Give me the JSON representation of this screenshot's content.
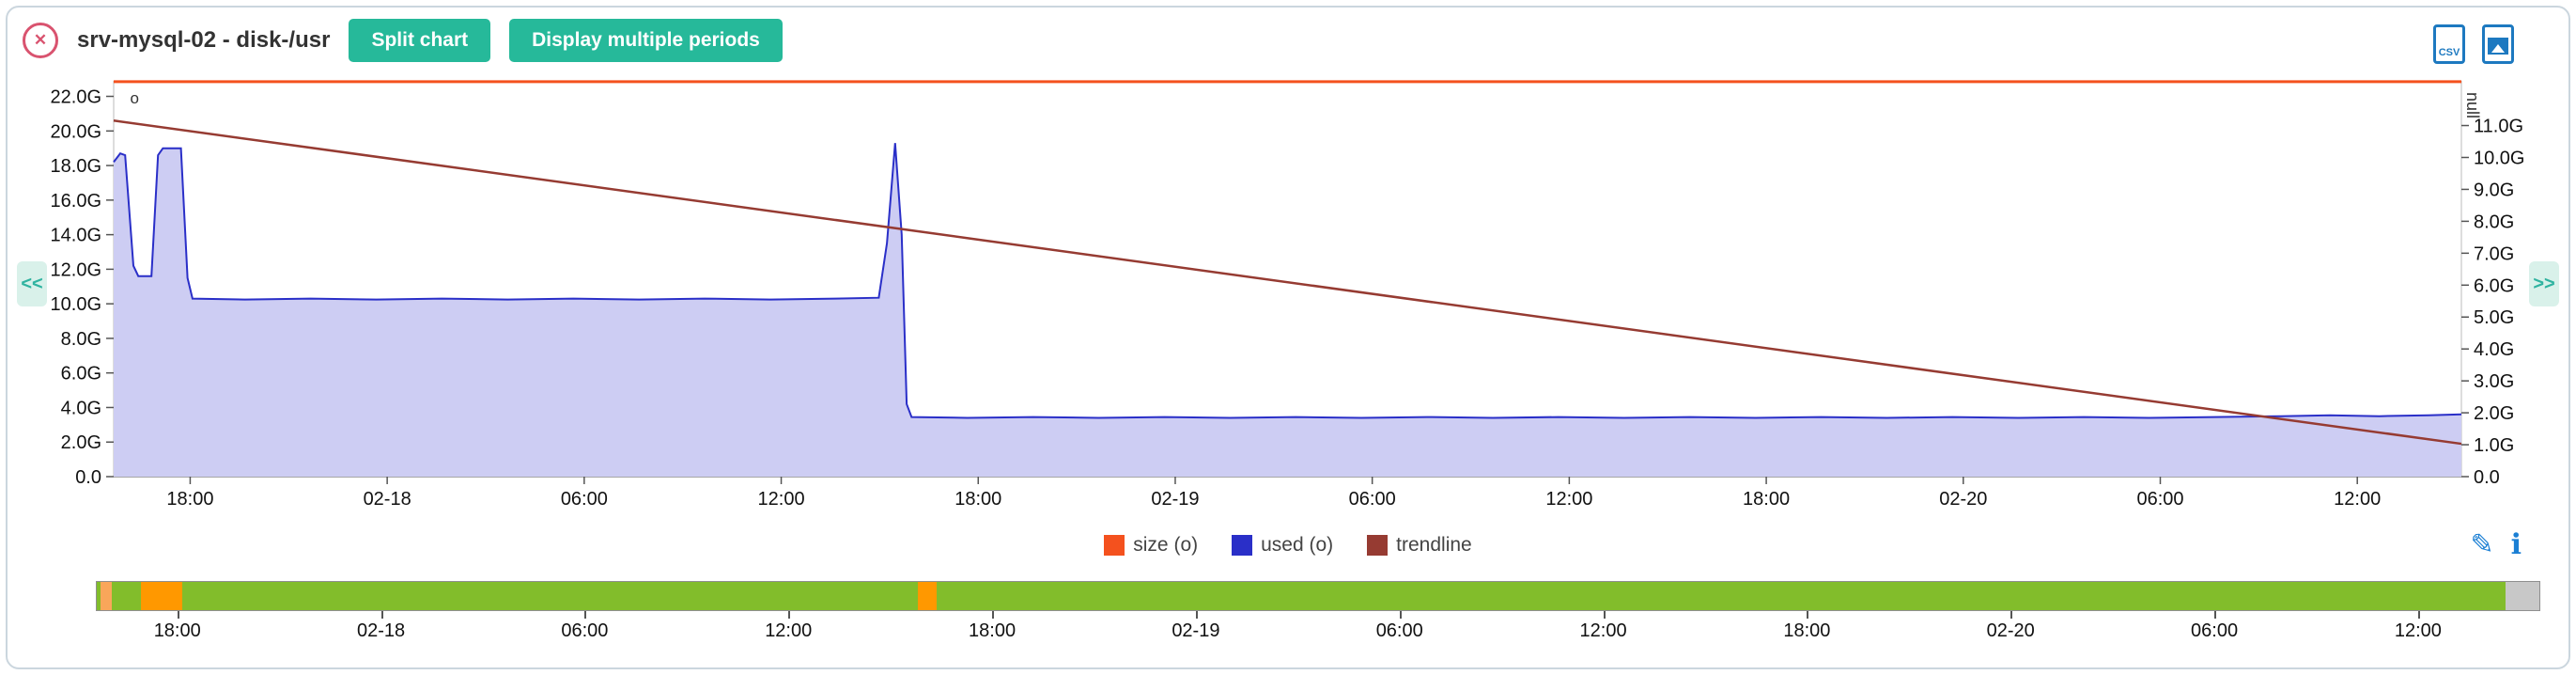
{
  "header": {
    "title": "srv-mysql-02 - disk-/usr",
    "close_glyph": "✕",
    "buttons": [
      {
        "label": "Split chart"
      },
      {
        "label": "Display multiple periods"
      }
    ],
    "export": {
      "csv_label": "CSV"
    }
  },
  "nav": {
    "prev_label": "<<",
    "next_label": ">>"
  },
  "tools": {
    "edit_glyph": "✎",
    "info_glyph": "ℹ"
  },
  "chart_data": {
    "type": "area",
    "title": "srv-mysql-02 - disk-/usr",
    "x_axis": {
      "labels": [
        "18:00",
        "02-18",
        "06:00",
        "12:00",
        "18:00",
        "02-19",
        "06:00",
        "12:00",
        "18:00",
        "02-20",
        "06:00",
        "12:00"
      ],
      "hours_total": 71.5,
      "first_label_offset_hours": 2.33,
      "label_interval_hours": 6
    },
    "left_axis": {
      "unit": "G",
      "max": 22.9,
      "ticks": [
        "22.0G",
        "20.0G",
        "18.0G",
        "16.0G",
        "14.0G",
        "12.0G",
        "10.0G",
        "8.0G",
        "6.0G",
        "4.0G",
        "2.0G",
        "0.0"
      ],
      "tick_values": [
        22,
        20,
        18,
        16,
        14,
        12,
        10,
        8,
        6,
        4,
        2,
        0
      ]
    },
    "right_axis": {
      "title": "null",
      "max": 12.4,
      "ticks": [
        "11.0G",
        "10.0G",
        "9.0G",
        "8.0G",
        "7.0G",
        "6.0G",
        "5.0G",
        "4.0G",
        "3.0G",
        "2.0G",
        "1.0G",
        "0.0"
      ],
      "tick_values": [
        11,
        10,
        9,
        8,
        7,
        6,
        5,
        4,
        3,
        2,
        1,
        0
      ]
    },
    "series": [
      {
        "id": "used",
        "name": "used (o)",
        "type": "area",
        "color": "#2a2fc8",
        "fill": "#cdcdf3",
        "points": [
          [
            0,
            18.2
          ],
          [
            0.2,
            18.7
          ],
          [
            0.35,
            18.6
          ],
          [
            0.6,
            12.2
          ],
          [
            0.75,
            11.6
          ],
          [
            1.15,
            11.6
          ],
          [
            1.35,
            18.6
          ],
          [
            1.5,
            19.0
          ],
          [
            2.05,
            19.0
          ],
          [
            2.25,
            11.5
          ],
          [
            2.4,
            10.3
          ],
          [
            4,
            10.25
          ],
          [
            6,
            10.3
          ],
          [
            8,
            10.25
          ],
          [
            10,
            10.3
          ],
          [
            12,
            10.25
          ],
          [
            14,
            10.3
          ],
          [
            16,
            10.25
          ],
          [
            18,
            10.3
          ],
          [
            20,
            10.25
          ],
          [
            22,
            10.3
          ],
          [
            23.3,
            10.35
          ],
          [
            23.55,
            13.5
          ],
          [
            23.8,
            19.3
          ],
          [
            24.0,
            14.0
          ],
          [
            24.15,
            4.2
          ],
          [
            24.3,
            3.45
          ],
          [
            26,
            3.4
          ],
          [
            28,
            3.45
          ],
          [
            30,
            3.4
          ],
          [
            32,
            3.45
          ],
          [
            34,
            3.4
          ],
          [
            36,
            3.45
          ],
          [
            38,
            3.4
          ],
          [
            40,
            3.45
          ],
          [
            42,
            3.4
          ],
          [
            44,
            3.45
          ],
          [
            46,
            3.4
          ],
          [
            48,
            3.45
          ],
          [
            50,
            3.4
          ],
          [
            52,
            3.45
          ],
          [
            54,
            3.4
          ],
          [
            56,
            3.45
          ],
          [
            58,
            3.4
          ],
          [
            60,
            3.45
          ],
          [
            62,
            3.4
          ],
          [
            64,
            3.45
          ],
          [
            66,
            3.5
          ],
          [
            67.5,
            3.55
          ],
          [
            69,
            3.5
          ],
          [
            70.5,
            3.55
          ],
          [
            71.5,
            3.6
          ]
        ]
      },
      {
        "id": "trendline",
        "name": "trendline",
        "type": "line",
        "color": "#963b32",
        "points": [
          [
            0,
            20.6
          ],
          [
            71.5,
            1.9
          ]
        ]
      },
      {
        "id": "size",
        "name": "size (o)",
        "type": "constant",
        "color": "#f4511e",
        "value": 22.85
      }
    ],
    "marker": {
      "label": "o",
      "t": 0.5,
      "value": 21.6
    },
    "legend": [
      {
        "label": "size (o)",
        "color": "#f4511e"
      },
      {
        "label": "used (o)",
        "color": "#2a2fc8"
      },
      {
        "label": "trendline",
        "color": "#963b32"
      }
    ]
  },
  "timeline": {
    "bar_color": "#82bd2b",
    "segments": [
      {
        "start": 0.0015,
        "end": 0.006,
        "color": "#f9a65a"
      },
      {
        "start": 0.018,
        "end": 0.035,
        "color": "#ff9800"
      },
      {
        "start": 0.336,
        "end": 0.344,
        "color": "#ff9800"
      },
      {
        "start": 0.986,
        "end": 1.0,
        "color": "#c8c8c8"
      }
    ],
    "labels": [
      "18:00",
      "02-18",
      "06:00",
      "12:00",
      "18:00",
      "02-19",
      "06:00",
      "12:00",
      "18:00",
      "02-20",
      "06:00",
      "12:00"
    ],
    "hours_total": 72,
    "first_label_offset_hours": 2.4,
    "label_interval_hours": 6
  }
}
